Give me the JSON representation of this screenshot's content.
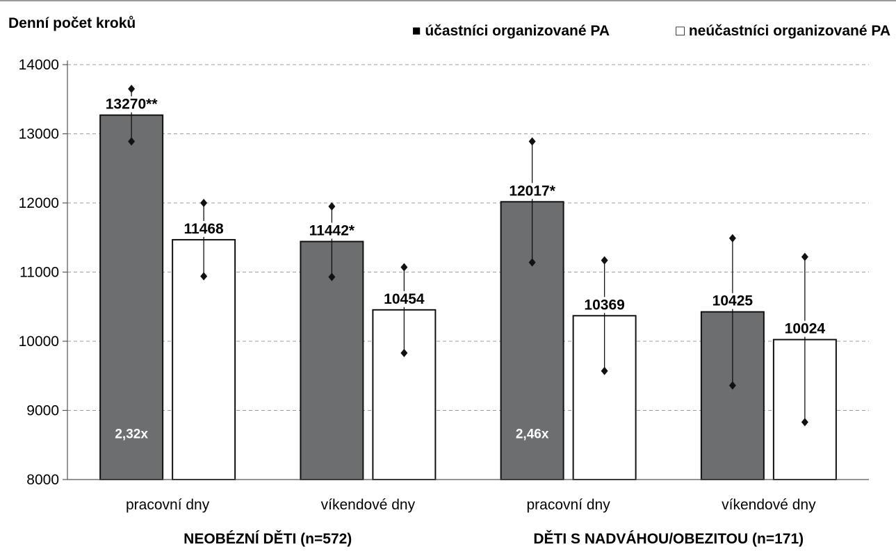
{
  "chart_data": {
    "type": "bar",
    "title": "",
    "ylabel": "Denní počet kroků",
    "xlabel": "",
    "ylim": [
      8000,
      14000
    ],
    "yticks": [
      8000,
      9000,
      10000,
      11000,
      12000,
      13000,
      14000
    ],
    "grid": true,
    "legend_position": "top-right",
    "groups": [
      {
        "label": "NEOBÉZNÍ DĚTI (n=572)",
        "categories": [
          "pracovní dny",
          "víkendové dny"
        ]
      },
      {
        "label": "DĚTI S NADVÁHOU/OBEZITOU (n=171)",
        "categories": [
          "pracovní dny",
          "víkendové dny"
        ]
      }
    ],
    "categories": [
      "pracovní dny",
      "víkendové dny",
      "pracovní dny",
      "víkendové dny"
    ],
    "series": [
      {
        "name": "účastníci organizované PA",
        "legend_marker": "■",
        "color": "#6d6e70",
        "values": [
          13270,
          11442,
          12017,
          10425
        ],
        "value_labels": [
          "13270**",
          "11442*",
          "12017*",
          "10425"
        ],
        "error_low": [
          12890,
          10930,
          11140,
          9360
        ],
        "error_high": [
          13650,
          11950,
          12890,
          11490
        ],
        "bar_annotations": [
          "2,32x",
          "",
          "2,46x",
          ""
        ]
      },
      {
        "name": "neúčastníci organizované PA",
        "legend_marker": "□",
        "color": "#ffffff",
        "values": [
          11468,
          10454,
          10369,
          10024
        ],
        "value_labels": [
          "11468",
          "10454",
          "10369",
          "10024"
        ],
        "error_low": [
          10940,
          9830,
          9570,
          8830
        ],
        "error_high": [
          12000,
          11070,
          11170,
          11220
        ],
        "bar_annotations": [
          "",
          "",
          "",
          ""
        ]
      }
    ]
  }
}
